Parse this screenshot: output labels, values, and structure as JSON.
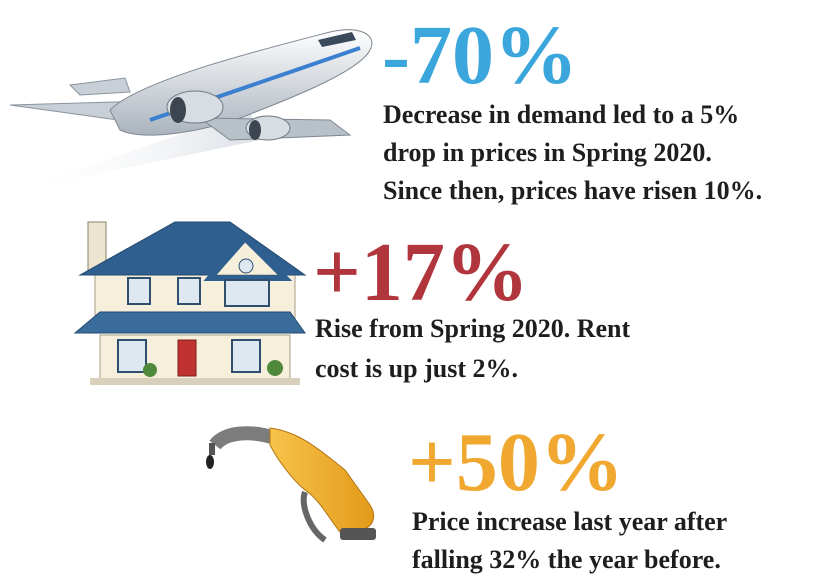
{
  "items": [
    {
      "stat": "-70%",
      "lines": [
        "Decrease in demand led to a 5%",
        "drop in prices in Spring 2020.",
        "Since then, prices have risen 10%."
      ]
    },
    {
      "stat": "+17%",
      "lines": [
        "Rise from Spring 2020. Rent",
        "cost is up just 2%."
      ]
    },
    {
      "stat": "+50%",
      "lines": [
        "Price increase last year after",
        "falling 32% the year before."
      ]
    }
  ]
}
